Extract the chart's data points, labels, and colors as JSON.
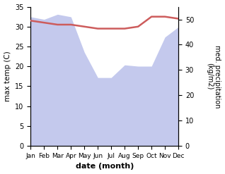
{
  "months": [
    "Jan",
    "Feb",
    "Mar",
    "Apr",
    "May",
    "Jun",
    "Jul",
    "Aug",
    "Sep",
    "Oct",
    "Nov",
    "Dec"
  ],
  "max_temp": [
    31.5,
    31.0,
    30.5,
    30.5,
    30.0,
    29.5,
    29.5,
    29.5,
    30.0,
    32.5,
    32.5,
    32.0
  ],
  "precipitation": [
    51.0,
    50.0,
    52.0,
    51.0,
    37.0,
    27.0,
    27.0,
    32.0,
    31.5,
    31.5,
    43.0,
    47.0
  ],
  "temp_color": "#cd5c5c",
  "precip_color": "#b0b8e8",
  "precip_alpha": 0.75,
  "xlabel": "date (month)",
  "ylabel_left": "max temp (C)",
  "ylabel_right": "med. precipitation\n(kg/m2)",
  "ylim_left": [
    0,
    35
  ],
  "ylim_right": [
    0,
    55
  ],
  "yticks_left": [
    0,
    5,
    10,
    15,
    20,
    25,
    30,
    35
  ],
  "yticks_right": [
    0,
    10,
    20,
    30,
    40,
    50
  ],
  "bg_color": "#ffffff",
  "temp_linewidth": 1.8
}
